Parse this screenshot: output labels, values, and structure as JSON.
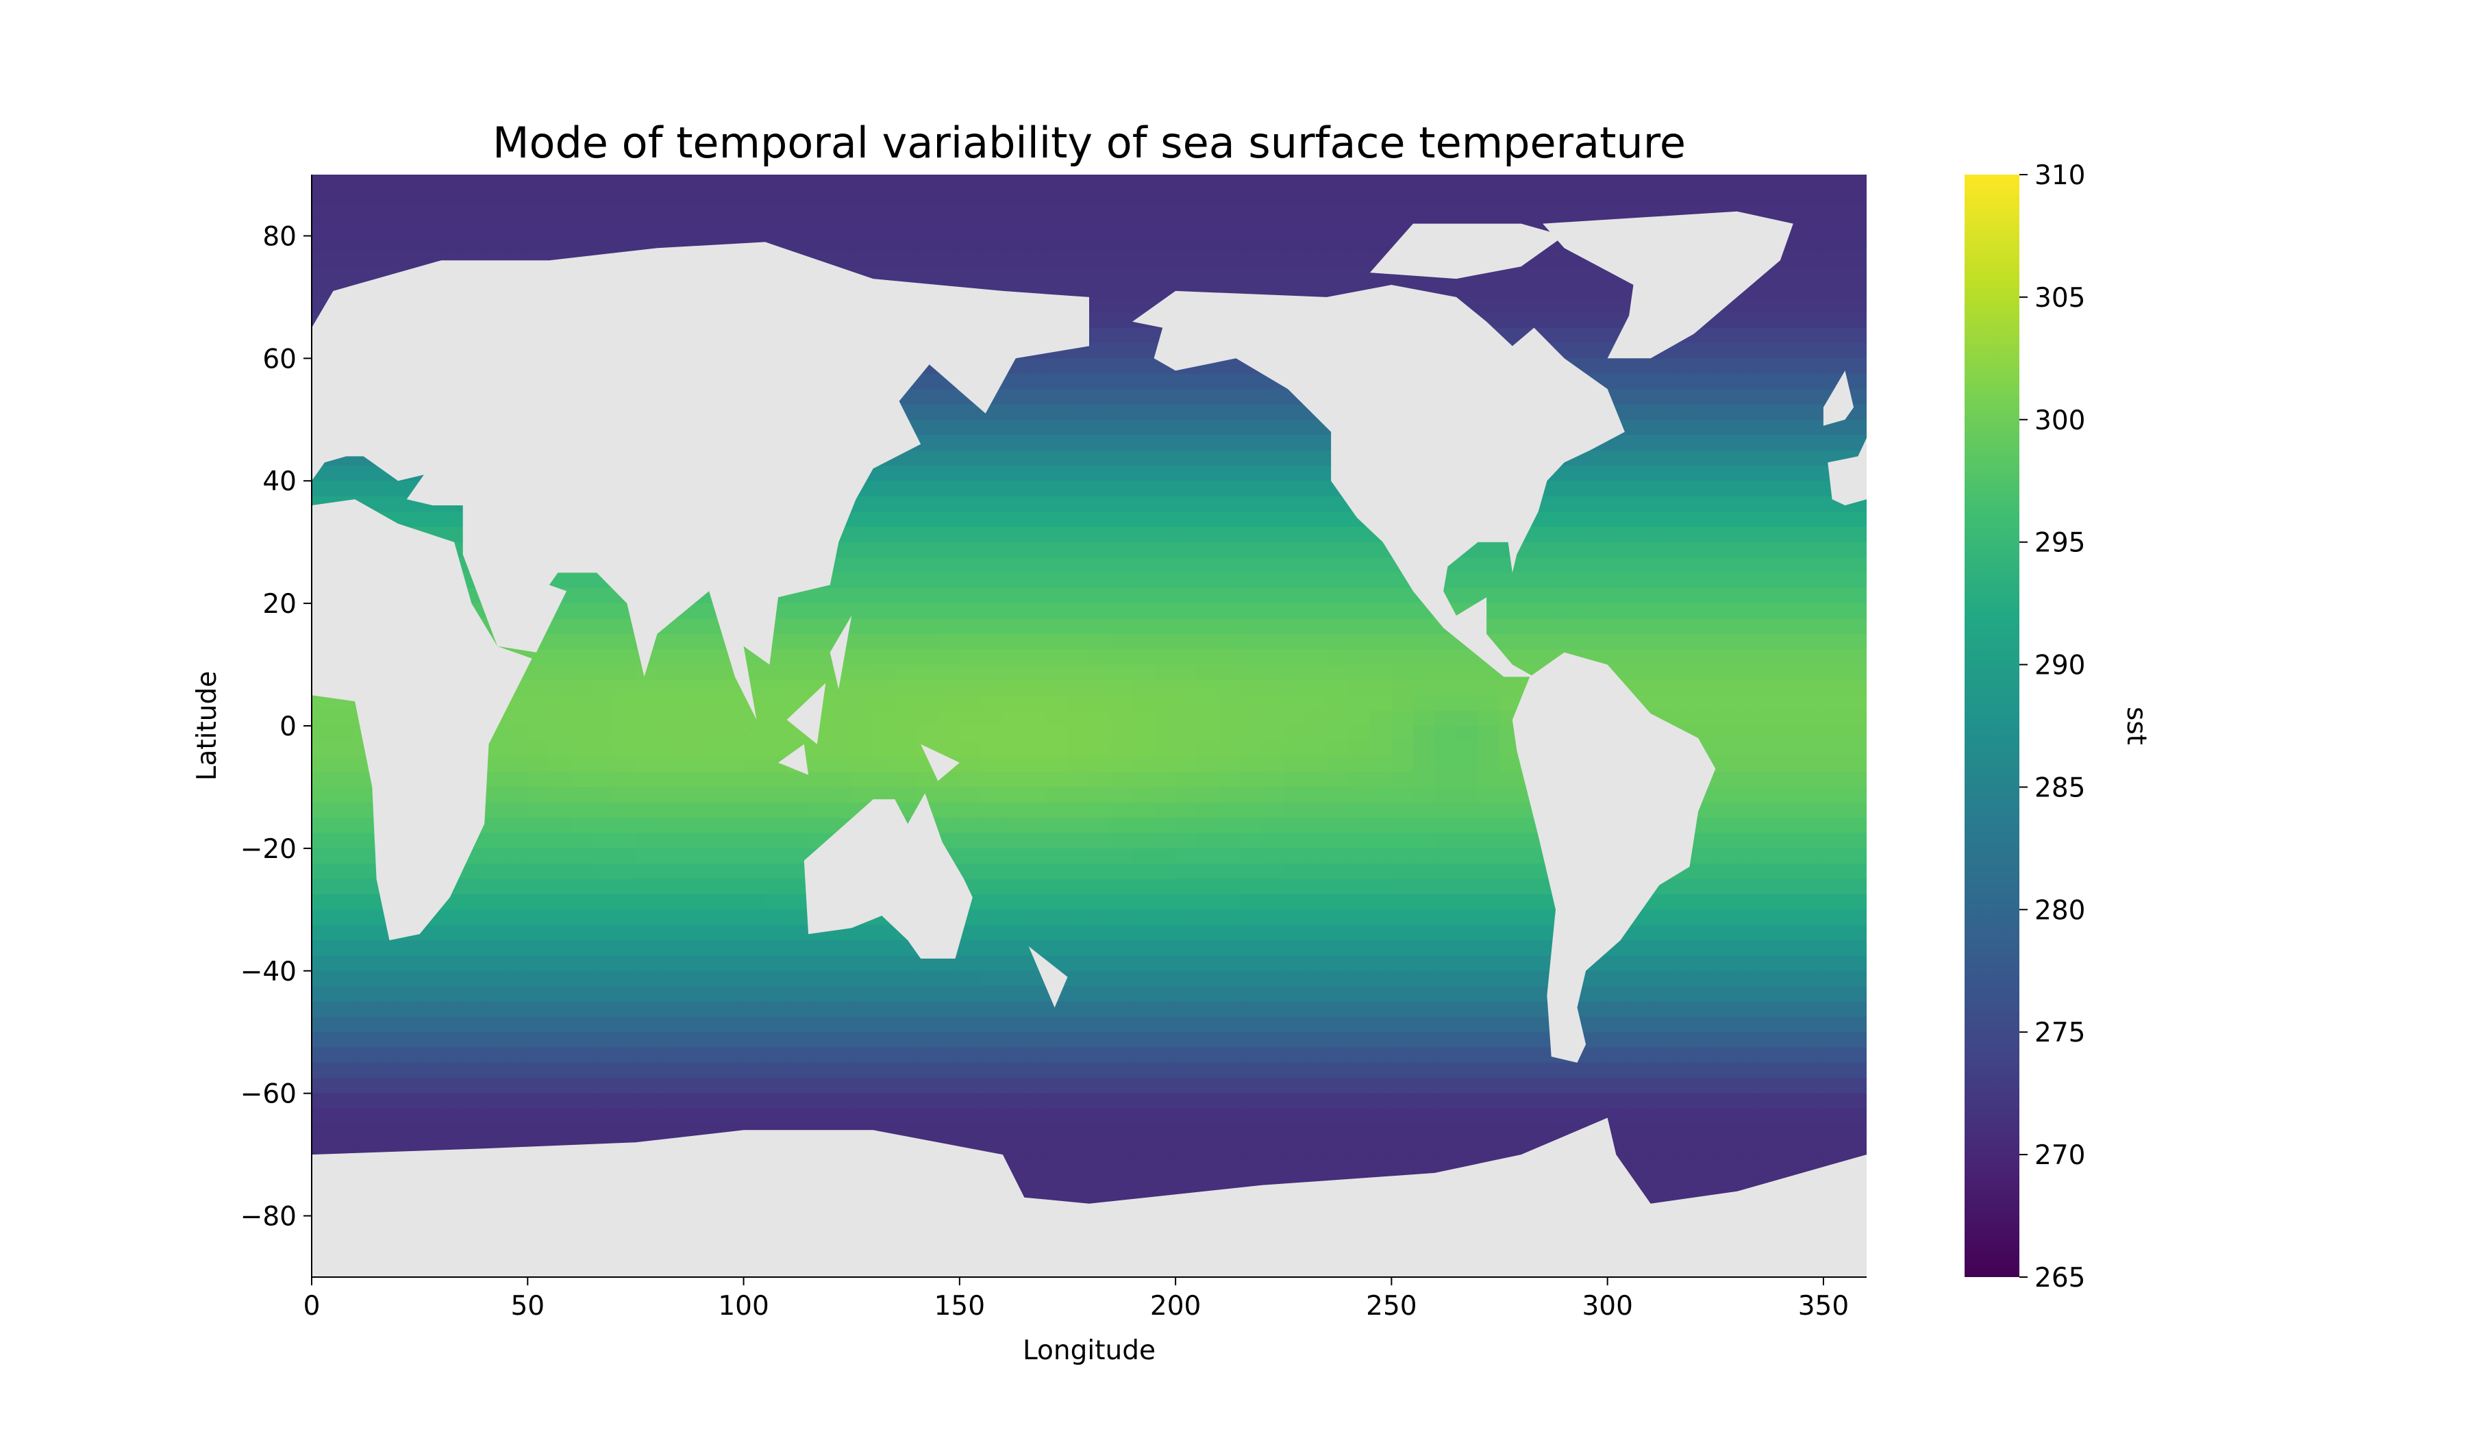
{
  "chart_data": {
    "type": "heatmap",
    "title": "Mode of temporal variability of sea surface temperature",
    "xlabel": "Longitude",
    "ylabel": "Latitude",
    "xlim": [
      0,
      360
    ],
    "ylim": [
      -90,
      90
    ],
    "x_ticks": [
      0,
      50,
      100,
      150,
      200,
      250,
      300,
      350
    ],
    "y_ticks": [
      -80,
      -60,
      -40,
      -20,
      0,
      20,
      40,
      60,
      80
    ],
    "x_tick_labels": [
      "0",
      "50",
      "100",
      "150",
      "200",
      "250",
      "300",
      "350"
    ],
    "y_tick_labels": [
      "−80",
      "−60",
      "−40",
      "−20",
      "0",
      "20",
      "40",
      "60",
      "80"
    ],
    "colormap": "viridis",
    "land_color": "#e5e5e5",
    "colorbar": {
      "label": "sst",
      "min": 265,
      "max": 310,
      "ticks": [
        265,
        270,
        275,
        280,
        285,
        290,
        295,
        300,
        305,
        310
      ],
      "tick_labels": [
        "265",
        "270",
        "275",
        "280",
        "285",
        "290",
        "295",
        "300",
        "305",
        "310"
      ]
    },
    "value_field": "sst in K varies with latitude: about 299–301 near the equator (warmest in the western Pacific and Indian Ocean), about 292–296 at ±30°, about 283–286 at ±45°, about 275–278 at −55°, about 271–272 poleward of 60°"
  }
}
